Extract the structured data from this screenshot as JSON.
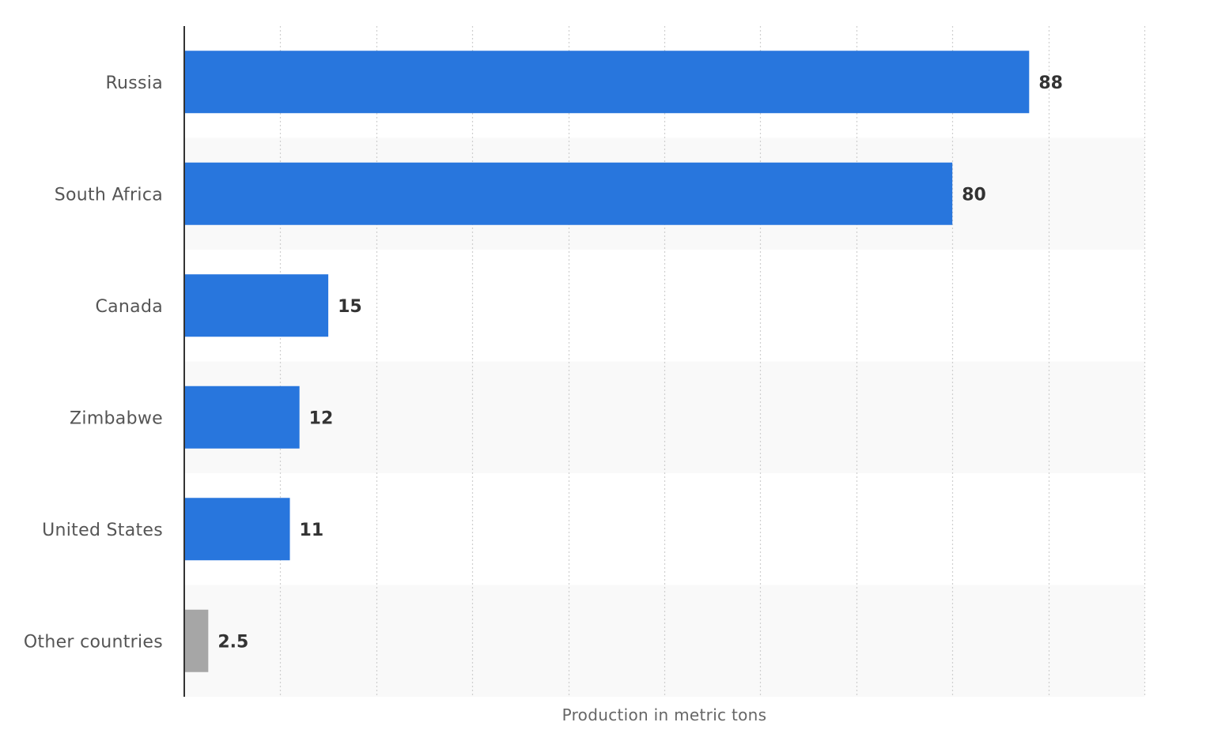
{
  "chart_data": {
    "type": "bar",
    "orientation": "horizontal",
    "categories": [
      "Russia",
      "South Africa",
      "Canada",
      "Zimbabwe",
      "United States",
      "Other countries"
    ],
    "values": [
      88,
      80,
      15,
      12,
      11,
      2.5
    ],
    "value_labels": [
      "88",
      "80",
      "15",
      "12",
      "11",
      "2.5"
    ],
    "xlabel": "Production in metric tons",
    "xlim": [
      0,
      100
    ],
    "x_grid_step": 10,
    "grid": true,
    "bar_colors": [
      "#2876dd",
      "#2876dd",
      "#2876dd",
      "#2876dd",
      "#2876dd",
      "#a6a6a6"
    ],
    "band_color": "#f9f9f9",
    "grid_color": "#cfcfcf",
    "axis_color": "#333333"
  }
}
